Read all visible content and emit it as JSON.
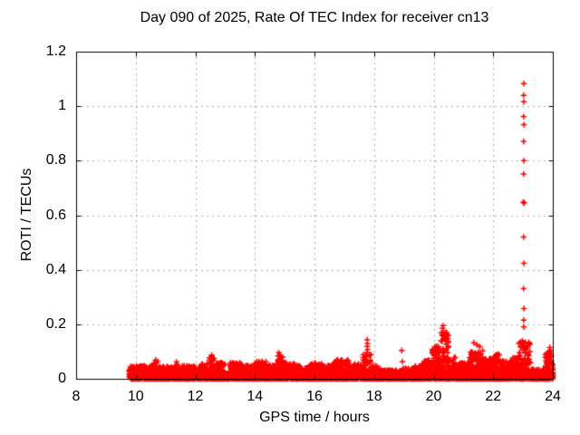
{
  "page": {
    "background": "#ffffff"
  },
  "chart_data": {
    "type": "scatter",
    "title": "Day 090 of 2025, Rate Of TEC Index for receiver cn13",
    "xlabel": "GPS time / hours",
    "ylabel": "ROTI / TECUs",
    "xlim": [
      8,
      24
    ],
    "ylim": [
      0,
      1.2
    ],
    "xticks": [
      8,
      10,
      12,
      14,
      16,
      18,
      20,
      22,
      24
    ],
    "xtick_labels": [
      "8",
      "10",
      "12",
      "14",
      "16",
      "18",
      "20",
      "22",
      "24"
    ],
    "yticks": [
      0,
      0.2,
      0.4,
      0.6,
      0.8,
      1,
      1.2
    ],
    "ytick_labels": [
      "0",
      "0.2",
      "0.4",
      "0.6",
      "0.8",
      "1",
      "1.2"
    ],
    "grid": {
      "show": true,
      "color": "#aaaaaa",
      "dash": [
        2,
        4
      ]
    },
    "axis_color": "#000000",
    "text_color": "#000000",
    "tick_length": 5,
    "series": [
      {
        "name": "ROTI",
        "marker": "plus",
        "color": "#ff0000",
        "marker_size": 7,
        "data_start_hour": 9.78,
        "data_end_hour": 24.0,
        "points_per_hour": 620,
        "band_envelope": [
          [
            9.78,
            10.0,
            0.045
          ],
          [
            10.0,
            10.3,
            0.05
          ],
          [
            10.3,
            10.6,
            0.045
          ],
          [
            10.6,
            10.75,
            0.065
          ],
          [
            10.75,
            11.3,
            0.045
          ],
          [
            11.3,
            11.45,
            0.058
          ],
          [
            11.45,
            12.2,
            0.048
          ],
          [
            12.2,
            12.45,
            0.055
          ],
          [
            12.45,
            12.65,
            0.08
          ],
          [
            12.65,
            13.0,
            0.06
          ],
          [
            13.0,
            13.15,
            0.02
          ],
          [
            13.15,
            13.55,
            0.06
          ],
          [
            13.55,
            14.0,
            0.05
          ],
          [
            14.0,
            14.4,
            0.065
          ],
          [
            14.4,
            14.7,
            0.05
          ],
          [
            14.7,
            14.95,
            0.085
          ],
          [
            14.95,
            15.35,
            0.06
          ],
          [
            15.35,
            15.85,
            0.05
          ],
          [
            15.85,
            16.25,
            0.058
          ],
          [
            16.25,
            16.65,
            0.05
          ],
          [
            16.65,
            17.15,
            0.07
          ],
          [
            17.15,
            17.6,
            0.055
          ],
          [
            17.6,
            17.9,
            0.09
          ],
          [
            17.9,
            18.25,
            0.05
          ],
          [
            18.25,
            18.95,
            0.032
          ],
          [
            18.95,
            19.35,
            0.038
          ],
          [
            19.35,
            19.65,
            0.05
          ],
          [
            19.65,
            19.95,
            0.07
          ],
          [
            19.95,
            20.2,
            0.12
          ],
          [
            20.2,
            20.5,
            0.17
          ],
          [
            20.5,
            20.75,
            0.08
          ],
          [
            20.75,
            21.2,
            0.06
          ],
          [
            21.2,
            21.65,
            0.11
          ],
          [
            21.65,
            22.0,
            0.075
          ],
          [
            22.0,
            22.3,
            0.09
          ],
          [
            22.3,
            22.6,
            0.065
          ],
          [
            22.6,
            22.85,
            0.08
          ],
          [
            22.85,
            23.25,
            0.14
          ],
          [
            23.25,
            23.75,
            0.035
          ],
          [
            23.75,
            23.95,
            0.095
          ],
          [
            23.95,
            24.0,
            0.06
          ]
        ],
        "outlier_points": [
          [
            10.67,
            0.069
          ],
          [
            11.37,
            0.062
          ],
          [
            12.55,
            0.087
          ],
          [
            14.8,
            0.096
          ],
          [
            14.82,
            0.085
          ],
          [
            17.76,
            0.096
          ],
          [
            17.77,
            0.143
          ],
          [
            17.78,
            0.13
          ],
          [
            17.77,
            0.119
          ],
          [
            17.78,
            0.107
          ],
          [
            18.93,
            0.104
          ],
          [
            18.95,
            0.063
          ],
          [
            20.25,
            0.14
          ],
          [
            20.28,
            0.16
          ],
          [
            20.3,
            0.185
          ],
          [
            20.32,
            0.195
          ],
          [
            20.35,
            0.17
          ],
          [
            20.4,
            0.15
          ],
          [
            21.35,
            0.132
          ],
          [
            21.45,
            0.125
          ],
          [
            21.55,
            0.118
          ],
          [
            23.03,
            1.083
          ],
          [
            23.02,
            1.04
          ],
          [
            23.03,
            1.016
          ],
          [
            23.02,
            0.962
          ],
          [
            23.03,
            0.932
          ],
          [
            23.02,
            0.871
          ],
          [
            23.03,
            0.8
          ],
          [
            23.02,
            0.751
          ],
          [
            23.01,
            0.648
          ],
          [
            23.04,
            0.645
          ],
          [
            23.02,
            0.52
          ],
          [
            23.03,
            0.424
          ],
          [
            23.02,
            0.331
          ],
          [
            23.03,
            0.258
          ],
          [
            23.02,
            0.215
          ],
          [
            23.03,
            0.19
          ],
          [
            23.88,
            0.1
          ],
          [
            23.9,
            0.115
          ],
          [
            23.92,
            0.105
          ]
        ]
      }
    ]
  }
}
